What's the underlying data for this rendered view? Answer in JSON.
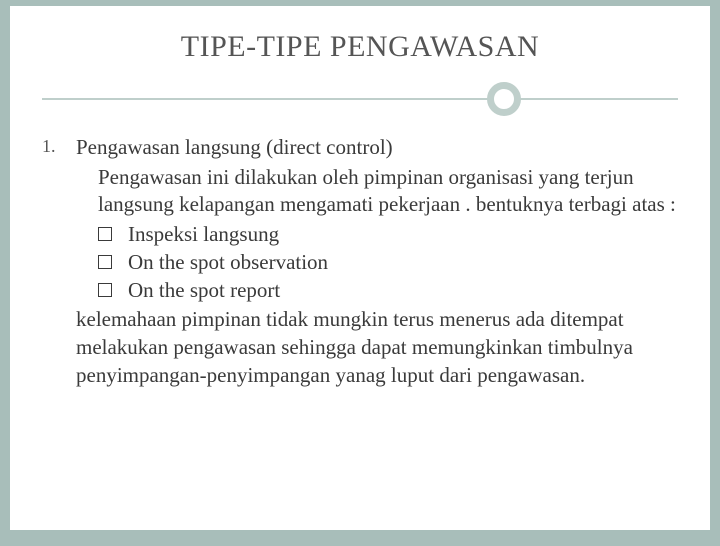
{
  "title": "TIPE-TIPE PENGAWASAN",
  "list_number": "1.",
  "item_title": "Pengawasan langsung (direct control)",
  "description": "Pengawasan ini dilakukan oleh pimpinan organisasi yang terjun langsung kelapangan mengamati pekerjaan . bentuknya terbagi atas :",
  "bullets": {
    "b1": "Inspeksi langsung",
    "b2": "On the spot observation",
    "b3": "On the spot report"
  },
  "closing": "kelemahaan pimpinan tidak mungkin terus menerus ada ditempat melakukan pengawasan sehingga dapat memungkinkan timbulnya penyimpangan-penyimpangan yanag luput dari pengawasan.",
  "colors": {
    "outer_bg": "#a8beba",
    "slide_bg": "#ffffff",
    "divider": "#bfcfcb",
    "text": "#3a3a3a",
    "title_text": "#555"
  }
}
